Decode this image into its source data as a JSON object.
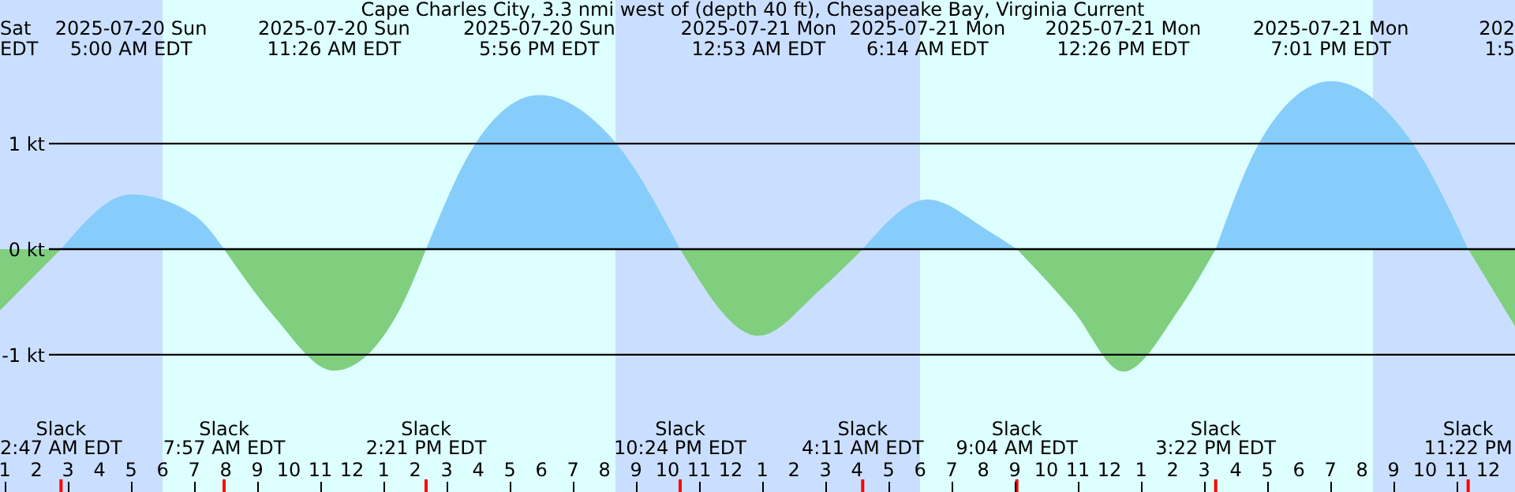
{
  "chart_data": {
    "type": "area",
    "title": "Cape Charles City, 3.3 nmi west of (depth 40 ft), Chesapeake Bay, Virginia Current",
    "x": [
      "2025-07-20T00:51",
      "2025-07-20T02:47",
      "2025-07-20T05:00",
      "2025-07-20T07:01",
      "2025-07-20T07:57",
      "2025-07-20T09:31",
      "2025-07-20T11:26",
      "2025-07-20T13:30",
      "2025-07-20T14:21",
      "2025-07-20T15:51",
      "2025-07-20T17:56",
      "2025-07-20T20:21",
      "2025-07-20T22:24",
      "2025-07-21T00:53",
      "2025-07-21T02:51",
      "2025-07-21T04:11",
      "2025-07-21T06:14",
      "2025-07-21T08:11",
      "2025-07-21T09:04",
      "2025-07-21T10:51",
      "2025-07-21T12:26",
      "2025-07-21T14:11",
      "2025-07-21T15:22",
      "2025-07-21T16:51",
      "2025-07-21T19:01",
      "2025-07-21T21:41",
      "2025-07-21T23:22",
      "2025-07-22T00:51"
    ],
    "series": [
      {
        "color": "#87cdfb",
        "values": [
          null,
          0,
          0.52,
          0.32,
          0,
          null,
          null,
          null,
          0,
          0.97,
          1.46,
          1.01,
          0,
          null,
          null,
          0,
          0.47,
          0.17,
          0,
          null,
          null,
          null,
          0,
          1.06,
          1.59,
          0.97,
          0,
          null
        ]
      },
      {
        "color": "#7fcf7f",
        "values": [
          -0.58,
          0,
          null,
          null,
          0,
          -0.63,
          -1.15,
          -0.58,
          0,
          null,
          null,
          null,
          0,
          -0.82,
          -0.38,
          0,
          null,
          null,
          0,
          -0.58,
          -1.16,
          -0.58,
          0,
          null,
          null,
          null,
          0,
          -0.73
        ]
      }
    ],
    "xlim": [
      "2025-07-20T00:51",
      "2025-07-22T00:51"
    ],
    "xticks": [
      {
        "value": "2025-07-20T01:00",
        "label": "1"
      },
      {
        "value": "2025-07-20T02:00",
        "label": "2"
      },
      {
        "value": "2025-07-20T03:00",
        "label": "3"
      },
      {
        "value": "2025-07-20T04:00",
        "label": "4"
      },
      {
        "value": "2025-07-20T05:00",
        "label": "5"
      },
      {
        "value": "2025-07-20T06:00",
        "label": "6"
      },
      {
        "value": "2025-07-20T07:00",
        "label": "7"
      },
      {
        "value": "2025-07-20T08:00",
        "label": "8"
      },
      {
        "value": "2025-07-20T09:00",
        "label": "9"
      },
      {
        "value": "2025-07-20T10:00",
        "label": "10"
      },
      {
        "value": "2025-07-20T11:00",
        "label": "11"
      },
      {
        "value": "2025-07-20T12:00",
        "label": "12"
      },
      {
        "value": "2025-07-20T13:00",
        "label": "1"
      },
      {
        "value": "2025-07-20T14:00",
        "label": "2"
      },
      {
        "value": "2025-07-20T15:00",
        "label": "3"
      },
      {
        "value": "2025-07-20T16:00",
        "label": "4"
      },
      {
        "value": "2025-07-20T17:00",
        "label": "5"
      },
      {
        "value": "2025-07-20T18:00",
        "label": "6"
      },
      {
        "value": "2025-07-20T19:00",
        "label": "7"
      },
      {
        "value": "2025-07-20T20:00",
        "label": "8"
      },
      {
        "value": "2025-07-20T21:00",
        "label": "9"
      },
      {
        "value": "2025-07-20T22:00",
        "label": "10"
      },
      {
        "value": "2025-07-20T23:00",
        "label": "11"
      },
      {
        "value": "2025-07-21T00:00",
        "label": "12"
      },
      {
        "value": "2025-07-21T01:00",
        "label": "1"
      },
      {
        "value": "2025-07-21T02:00",
        "label": "2"
      },
      {
        "value": "2025-07-21T03:00",
        "label": "3"
      },
      {
        "value": "2025-07-21T04:00",
        "label": "4"
      },
      {
        "value": "2025-07-21T05:00",
        "label": "5"
      },
      {
        "value": "2025-07-21T06:00",
        "label": "6"
      },
      {
        "value": "2025-07-21T07:00",
        "label": "7"
      },
      {
        "value": "2025-07-21T08:00",
        "label": "8"
      },
      {
        "value": "2025-07-21T09:00",
        "label": "9"
      },
      {
        "value": "2025-07-21T10:00",
        "label": "10"
      },
      {
        "value": "2025-07-21T11:00",
        "label": "11"
      },
      {
        "value": "2025-07-21T12:00",
        "label": "12"
      },
      {
        "value": "2025-07-21T13:00",
        "label": "1"
      },
      {
        "value": "2025-07-21T14:00",
        "label": "2"
      },
      {
        "value": "2025-07-21T15:00",
        "label": "3"
      },
      {
        "value": "2025-07-21T16:00",
        "label": "4"
      },
      {
        "value": "2025-07-21T17:00",
        "label": "5"
      },
      {
        "value": "2025-07-21T18:00",
        "label": "6"
      },
      {
        "value": "2025-07-21T19:00",
        "label": "7"
      },
      {
        "value": "2025-07-21T20:00",
        "label": "8"
      },
      {
        "value": "2025-07-21T21:00",
        "label": "9"
      },
      {
        "value": "2025-07-21T22:00",
        "label": "10"
      },
      {
        "value": "2025-07-21T23:00",
        "label": "11"
      },
      {
        "value": "2025-07-22T00:00",
        "label": "12"
      }
    ],
    "ylim": [
      -2.3,
      2.36
    ],
    "yticks": [
      {
        "value": -1,
        "label": "-1 kt"
      },
      {
        "value": 0,
        "label": "0 kt"
      },
      {
        "value": 1,
        "label": "1 kt"
      }
    ],
    "grid": "y",
    "bands": [
      {
        "axis": "x",
        "from": "2025-07-20T00:51",
        "to": "2025-07-20T06:00",
        "color": "#cadfff"
      },
      {
        "axis": "x",
        "from": "2025-07-20T06:00",
        "to": "2025-07-20T20:21",
        "color": "#ddffff"
      },
      {
        "axis": "x",
        "from": "2025-07-20T20:21",
        "to": "2025-07-21T06:00",
        "color": "#cadfff"
      },
      {
        "axis": "x",
        "from": "2025-07-21T06:00",
        "to": "2025-07-21T20:21",
        "color": "#ddffff"
      },
      {
        "axis": "x",
        "from": "2025-07-21T20:21",
        "to": "2025-07-22T00:51",
        "color": "#cadfff"
      }
    ],
    "annotations": [
      "Sat\nEDT",
      "2025-07-20 Sun\n5:00 AM EDT",
      "2025-07-20 Sun\n11:26 AM EDT",
      "2025-07-20 Sun\n5:56 PM EDT",
      "2025-07-21 Mon\n12:53 AM EDT",
      "2025-07-21 Mon\n6:14 AM EDT",
      "2025-07-21 Mon\n12:26 PM EDT",
      "2025-07-21 Mon\n7:01 PM EDT",
      "202\n1:5",
      "Slack\n2:47 AM EDT",
      "Slack\n7:57 AM EDT",
      "Slack\n2:21 PM EDT",
      "Slack\n10:24 PM EDT",
      "Slack\n4:11 AM EDT",
      "Slack\n9:04 AM EDT",
      "Slack\n3:22 PM EDT",
      "Slack\n11:22 PM"
    ]
  }
}
